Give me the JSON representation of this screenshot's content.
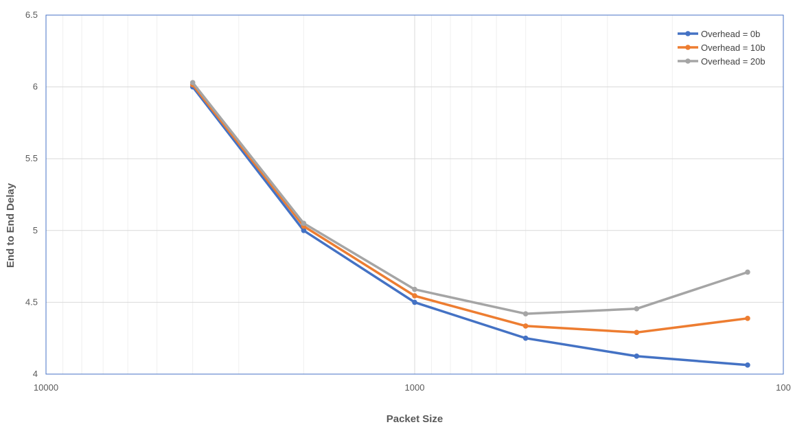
{
  "chart_data": {
    "type": "line",
    "title": "",
    "xlabel": "Packet Size",
    "ylabel": "End to End Delay",
    "x_scale": "log",
    "x_reversed": true,
    "xlim": [
      10000,
      100
    ],
    "ylim": [
      4,
      6.5
    ],
    "x_ticks": [
      10000,
      1000,
      100
    ],
    "x_tick_labels": [
      "10000",
      "1000",
      "100"
    ],
    "y_ticks": [
      4,
      4.5,
      5,
      5.5,
      6,
      6.5
    ],
    "y_tick_labels": [
      "4",
      "4.5",
      "5",
      "5.5",
      "6",
      "6.5"
    ],
    "grid": true,
    "legend_position": "top-right",
    "x": [
      4000,
      2000,
      1000,
      500,
      250,
      125
    ],
    "series": [
      {
        "name": "Overhead = 0b",
        "color": "#4472C4",
        "values": [
          6.0,
          5.0,
          4.5,
          4.25,
          4.125,
          4.063
        ]
      },
      {
        "name": "Overhead = 10b",
        "color": "#ED7D31",
        "values": [
          6.015,
          5.03,
          4.545,
          4.335,
          4.29,
          4.388
        ]
      },
      {
        "name": "Overhead = 20b",
        "color": "#A5A5A5",
        "values": [
          6.03,
          5.05,
          4.59,
          4.42,
          4.455,
          4.71
        ]
      }
    ]
  }
}
